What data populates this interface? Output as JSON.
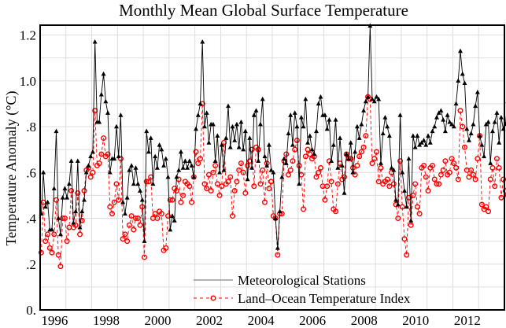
{
  "chart_data": {
    "type": "line",
    "title": "Monthly Mean Global Surface Temperature",
    "xlabel": "",
    "ylabel": "Temperature Anomaly (°C)",
    "xlim": [
      1996.0,
      2014.0
    ],
    "ylim": [
      0.0,
      1.25
    ],
    "grid": true,
    "legend_position": "bottom-center",
    "x_tick_labels": [
      "1996",
      "1998",
      "2000",
      "2002",
      "2004",
      "2006",
      "2008",
      "2010",
      "2012"
    ],
    "x_tick_values": [
      1996,
      1998,
      2000,
      2002,
      2004,
      2006,
      2008,
      2010,
      2012
    ],
    "y_tick_labels": [
      "0.",
      ".2",
      ".4",
      ".6",
      ".8",
      "1.0",
      "1.2"
    ],
    "y_tick_values": [
      0.0,
      0.2,
      0.4,
      0.6,
      0.8,
      1.0,
      1.2
    ],
    "x_start": 1996.0,
    "x_step_months": 1,
    "series": [
      {
        "name": "Meteorological Stations",
        "color": "#000000",
        "line_style": "solid",
        "marker": "triangle",
        "values": [
          0.42,
          0.6,
          0.45,
          0.47,
          0.35,
          0.35,
          0.53,
          0.78,
          0.4,
          0.33,
          0.49,
          0.53,
          0.49,
          0.55,
          0.65,
          0.38,
          0.43,
          0.65,
          0.36,
          0.43,
          0.48,
          0.6,
          0.63,
          0.67,
          0.69,
          1.17,
          0.82,
          0.82,
          0.94,
          1.03,
          0.91,
          0.86,
          0.6,
          0.66,
          0.66,
          0.8,
          0.67,
          0.85,
          0.47,
          0.42,
          0.49,
          0.61,
          0.63,
          0.55,
          0.62,
          0.55,
          0.52,
          0.48,
          0.3,
          0.78,
          0.69,
          0.75,
          0.55,
          0.67,
          0.62,
          0.72,
          0.7,
          0.63,
          0.66,
          0.58,
          0.35,
          0.41,
          0.39,
          0.58,
          0.61,
          0.69,
          0.62,
          0.65,
          0.62,
          0.65,
          0.63,
          0.58,
          0.79,
          0.85,
          0.9,
          1.17,
          0.8,
          0.86,
          0.73,
          0.81,
          0.81,
          0.65,
          0.76,
          0.6,
          0.72,
          0.61,
          0.75,
          0.89,
          0.71,
          0.8,
          0.74,
          0.81,
          0.71,
          0.82,
          0.7,
          0.78,
          0.57,
          0.75,
          0.62,
          0.85,
          0.87,
          0.65,
          0.81,
          0.92,
          0.67,
          0.63,
          0.72,
          0.61,
          0.6,
          0.4,
          0.27,
          0.43,
          0.58,
          0.66,
          0.64,
          0.77,
          0.85,
          0.72,
          0.86,
          0.8,
          0.55,
          0.84,
          0.8,
          0.92,
          0.73,
          0.76,
          0.7,
          0.68,
          0.78,
          0.9,
          0.93,
          0.85,
          0.85,
          0.79,
          0.83,
          0.65,
          0.72,
          0.83,
          0.62,
          0.75,
          0.63,
          0.51,
          0.68,
          0.66,
          0.73,
          0.6,
          0.69,
          0.8,
          0.75,
          0.81,
          0.87,
          0.91,
          0.93,
          1.24,
          0.92,
          0.91,
          0.93,
          0.92,
          0.64,
          0.77,
          0.84,
          0.8,
          0.76,
          0.62,
          0.61,
          0.48,
          0.46,
          0.85,
          0.6,
          0.52,
          0.45,
          0.66,
          0.39,
          0.76,
          0.71,
          0.76,
          0.72,
          0.73,
          0.74,
          0.72,
          0.76,
          0.73,
          0.78,
          0.8,
          0.84,
          0.86,
          0.87,
          0.83,
          0.78,
          0.85,
          0.82,
          0.81,
          0.8,
          0.9,
          1.0,
          1.13,
          1.03,
          0.99,
          0.79,
          0.74,
          0.77,
          0.81,
          0.89,
          0.95,
          0.76,
          0.72,
          0.67,
          0.81,
          0.82,
          0.64,
          0.78,
          0.82,
          0.86,
          0.73,
          0.84,
          0.79,
          0.81,
          0.91,
          0.7,
          0.73,
          0.64,
          0.77,
          0.76,
          0.82,
          0.73,
          0.88,
          0.79,
          0.84,
          0.89,
          0.96,
          1.01,
          0.85,
          0.91,
          0.85,
          0.88,
          0.78,
          0.8,
          0.86,
          0.83,
          0.8
        ]
      },
      {
        "name": "Land–Ocean Temperature Index",
        "color": "#ff0000",
        "line_style": "dashed",
        "marker": "circle",
        "values": [
          0.25,
          0.47,
          0.3,
          0.33,
          0.27,
          0.25,
          0.33,
          0.48,
          0.24,
          0.19,
          0.4,
          0.4,
          0.3,
          0.36,
          0.52,
          0.36,
          0.37,
          0.51,
          0.33,
          0.39,
          0.52,
          0.61,
          0.62,
          0.58,
          0.6,
          0.87,
          0.63,
          0.64,
          0.68,
          0.75,
          0.67,
          0.68,
          0.45,
          0.42,
          0.47,
          0.55,
          0.48,
          0.66,
          0.31,
          0.33,
          0.3,
          0.37,
          0.41,
          0.35,
          0.4,
          0.4,
          0.37,
          0.45,
          0.23,
          0.56,
          0.56,
          0.58,
          0.4,
          0.42,
          0.4,
          0.43,
          0.42,
          0.26,
          0.27,
          0.41,
          0.48,
          0.48,
          0.53,
          0.52,
          0.57,
          0.47,
          0.5,
          0.56,
          0.55,
          0.54,
          0.47,
          0.58,
          0.69,
          0.64,
          0.66,
          0.9,
          0.55,
          0.53,
          0.59,
          0.52,
          0.6,
          0.63,
          0.55,
          0.5,
          0.54,
          0.73,
          0.55,
          0.56,
          0.58,
          0.41,
          0.52,
          0.56,
          0.61,
          0.64,
          0.6,
          0.51,
          0.63,
          0.65,
          0.7,
          0.54,
          0.71,
          0.7,
          0.55,
          0.61,
          0.47,
          0.64,
          0.53,
          0.56,
          0.41,
          0.4,
          0.24,
          0.42,
          0.42,
          0.65,
          0.68,
          0.59,
          0.61,
          0.65,
          0.7,
          0.74,
          0.63,
          0.59,
          0.44,
          0.67,
          0.7,
          0.68,
          0.66,
          0.67,
          0.58,
          0.6,
          0.62,
          0.54,
          0.48,
          0.54,
          0.65,
          0.56,
          0.44,
          0.43,
          0.55,
          0.64,
          0.57,
          0.58,
          0.68,
          0.66,
          0.66,
          0.62,
          0.59,
          0.63,
          0.67,
          0.69,
          0.71,
          0.76,
          0.93,
          0.92,
          0.64,
          0.66,
          0.69,
          0.56,
          0.62,
          0.55,
          0.56,
          0.57,
          0.54,
          0.6,
          0.55,
          0.46,
          0.4,
          0.65,
          0.45,
          0.31,
          0.24,
          0.49,
          0.37,
          0.5,
          0.55,
          0.45,
          0.42,
          0.62,
          0.63,
          0.58,
          0.52,
          0.62,
          0.63,
          0.57,
          0.55,
          0.55,
          0.59,
          0.61,
          0.65,
          0.59,
          0.6,
          0.66,
          0.64,
          0.62,
          0.57,
          0.87,
          0.8,
          0.71,
          0.61,
          0.58,
          0.61,
          0.59,
          0.57,
          0.66,
          0.76,
          0.46,
          0.44,
          0.45,
          0.43,
          0.57,
          0.62,
          0.54,
          0.66,
          0.62,
          0.49,
          0.57,
          0.52,
          0.5,
          0.48,
          0.5,
          0.38,
          0.41,
          0.49,
          0.51,
          0.6,
          0.59,
          0.54,
          0.61,
          0.64,
          0.67,
          0.62,
          0.48,
          0.58,
          0.65,
          0.56,
          0.62,
          0.68,
          0.58,
          0.6,
          0.78
        ]
      }
    ]
  }
}
